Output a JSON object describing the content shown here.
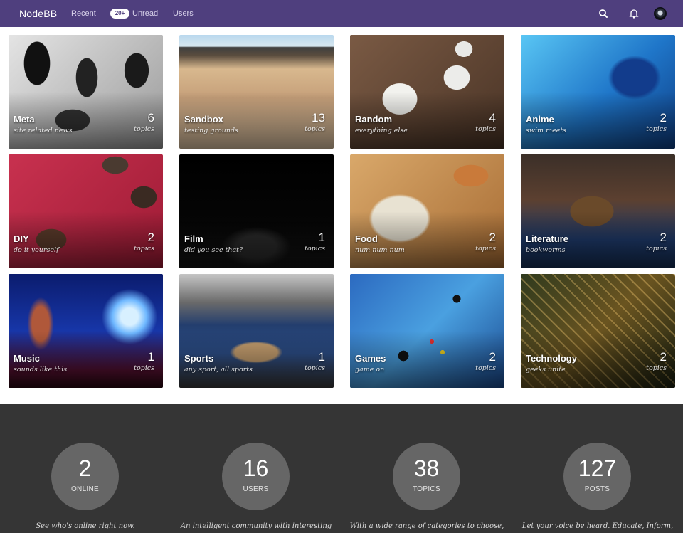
{
  "navbar": {
    "brand": "NodeBB",
    "recent": "Recent",
    "unread_badge": "20+",
    "unread": "Unread",
    "users": "Users",
    "icons": [
      "search-icon",
      "bell-icon",
      "avatar"
    ]
  },
  "categories": [
    {
      "name": "Meta",
      "desc": "site related news",
      "count": "6",
      "unit": "topics"
    },
    {
      "name": "Sandbox",
      "desc": "testing grounds",
      "count": "13",
      "unit": "topics"
    },
    {
      "name": "Random",
      "desc": "everything else",
      "count": "4",
      "unit": "topics"
    },
    {
      "name": "Anime",
      "desc": "swim meets",
      "count": "2",
      "unit": "topics"
    },
    {
      "name": "DIY",
      "desc": "do it yourself",
      "count": "2",
      "unit": "topics"
    },
    {
      "name": "Film",
      "desc": "did you see that?",
      "count": "1",
      "unit": "topics"
    },
    {
      "name": "Food",
      "desc": "num num num",
      "count": "2",
      "unit": "topics"
    },
    {
      "name": "Literature",
      "desc": "bookworms",
      "count": "2",
      "unit": "topics"
    },
    {
      "name": "Music",
      "desc": "sounds like this",
      "count": "1",
      "unit": "topics"
    },
    {
      "name": "Sports",
      "desc": "any sport, all sports",
      "count": "1",
      "unit": "topics"
    },
    {
      "name": "Games",
      "desc": "game on",
      "count": "2",
      "unit": "topics"
    },
    {
      "name": "Technology",
      "desc": "geeks unite",
      "count": "2",
      "unit": "topics"
    }
  ],
  "stats": [
    {
      "value": "2",
      "label": "ONLINE",
      "text": "See who's online right now."
    },
    {
      "value": "16",
      "label": "USERS",
      "text": "An intelligent community with interesting"
    },
    {
      "value": "38",
      "label": "TOPICS",
      "text": "With a wide range of categories to choose,"
    },
    {
      "value": "127",
      "label": "POSTS",
      "text": "Let your voice be heard. Educate, Inform,"
    }
  ],
  "colors": {
    "navbar": "#4f3f7e",
    "footer": "#353535",
    "stat_circle": "#666666"
  }
}
